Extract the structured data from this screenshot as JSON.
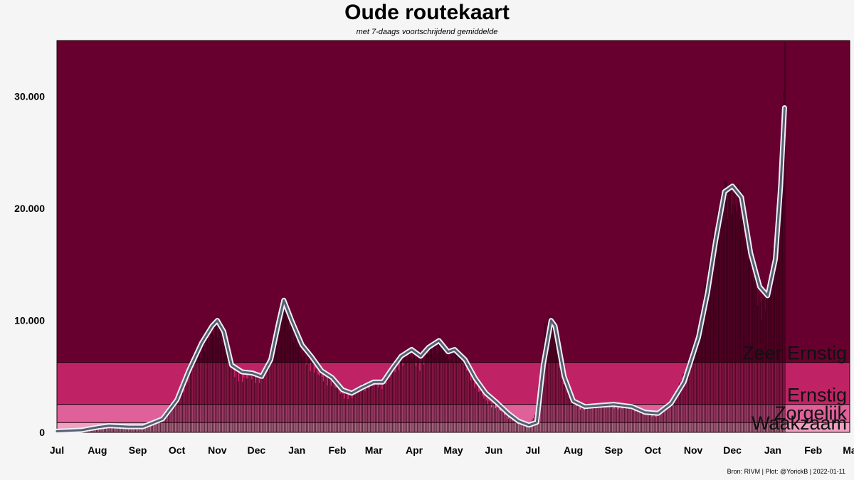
{
  "chart_data": {
    "type": "bar",
    "title": "Oude routekaart",
    "subtitle": "met 7-daags voortschrijdend gemiddelde",
    "xlabel": "",
    "ylabel": "",
    "ylim": [
      0,
      35000
    ],
    "y_ticks": [
      {
        "value": 0,
        "label": "0"
      },
      {
        "value": 10000,
        "label": "10.000"
      },
      {
        "value": 20000,
        "label": "20.000"
      },
      {
        "value": 30000,
        "label": "30.000"
      }
    ],
    "x_ticks": [
      {
        "date": "2020-07-01",
        "label": "Jul"
      },
      {
        "date": "2020-08-01",
        "label": "Aug"
      },
      {
        "date": "2020-09-01",
        "label": "Sep"
      },
      {
        "date": "2020-10-01",
        "label": "Oct"
      },
      {
        "date": "2020-11-01",
        "label": "Nov"
      },
      {
        "date": "2020-12-01",
        "label": "Dec"
      },
      {
        "date": "2021-01-01",
        "label": "Jan"
      },
      {
        "date": "2021-02-01",
        "label": "Feb"
      },
      {
        "date": "2021-03-01",
        "label": "Mar"
      },
      {
        "date": "2021-04-01",
        "label": "Apr"
      },
      {
        "date": "2021-05-01",
        "label": "May"
      },
      {
        "date": "2021-06-01",
        "label": "Jun"
      },
      {
        "date": "2021-07-01",
        "label": "Jul"
      },
      {
        "date": "2021-08-01",
        "label": "Aug"
      },
      {
        "date": "2021-09-01",
        "label": "Sep"
      },
      {
        "date": "2021-10-01",
        "label": "Oct"
      },
      {
        "date": "2021-11-01",
        "label": "Nov"
      },
      {
        "date": "2021-12-01",
        "label": "Dec"
      },
      {
        "date": "2022-01-01",
        "label": "Jan"
      },
      {
        "date": "2022-02-01",
        "label": "Feb"
      },
      {
        "date": "2022-03-01",
        "label": "Ma"
      }
    ],
    "x_range": [
      "2020-07-01",
      "2022-03-01"
    ],
    "bands": [
      {
        "name": "Waakzaam",
        "from": 0,
        "to": 875,
        "color": "#f0a0c0"
      },
      {
        "name": "Zorgelijk",
        "from": 875,
        "to": 2500,
        "color": "#e0609a"
      },
      {
        "name": "Ernstig",
        "from": 2500,
        "to": 6250,
        "color": "#c02365"
      },
      {
        "name": "Zeer Ernstig",
        "from": 6250,
        "to": 35000,
        "color": "#67002f"
      }
    ],
    "series": [
      {
        "kind": "daily-bars",
        "color": "#2a0212",
        "points": [
          [
            "2020-07-01",
            60
          ],
          [
            "2020-07-15",
            100
          ],
          [
            "2020-07-25",
            200
          ],
          [
            "2020-08-01",
            450
          ],
          [
            "2020-08-08",
            600
          ],
          [
            "2020-08-15",
            550
          ],
          [
            "2020-08-25",
            450
          ],
          [
            "2020-09-01",
            500
          ],
          [
            "2020-09-10",
            800
          ],
          [
            "2020-09-20",
            1500
          ],
          [
            "2020-10-01",
            2900
          ],
          [
            "2020-10-10",
            5500
          ],
          [
            "2020-10-18",
            7800
          ],
          [
            "2020-10-25",
            9000
          ],
          [
            "2020-10-31",
            10200
          ],
          [
            "2020-11-05",
            9200
          ],
          [
            "2020-11-12",
            6000
          ],
          [
            "2020-11-20",
            5200
          ],
          [
            "2020-11-28",
            5500
          ],
          [
            "2020-12-05",
            5000
          ],
          [
            "2020-12-12",
            7200
          ],
          [
            "2020-12-18",
            10500
          ],
          [
            "2020-12-22",
            12500
          ],
          [
            "2020-12-28",
            10000
          ],
          [
            "2021-01-05",
            7500
          ],
          [
            "2021-01-12",
            6500
          ],
          [
            "2021-01-20",
            5300
          ],
          [
            "2021-01-28",
            4800
          ],
          [
            "2021-02-05",
            3600
          ],
          [
            "2021-02-12",
            3500
          ],
          [
            "2021-02-20",
            4400
          ],
          [
            "2021-03-01",
            4600
          ],
          [
            "2021-03-08",
            4700
          ],
          [
            "2021-03-15",
            5800
          ],
          [
            "2021-03-22",
            7000
          ],
          [
            "2021-03-30",
            7400
          ],
          [
            "2021-04-06",
            6500
          ],
          [
            "2021-04-12",
            7800
          ],
          [
            "2021-04-20",
            8800
          ],
          [
            "2021-04-27",
            7000
          ],
          [
            "2021-05-02",
            7600
          ],
          [
            "2021-05-10",
            6500
          ],
          [
            "2021-05-18",
            4500
          ],
          [
            "2021-05-26",
            3000
          ],
          [
            "2021-06-03",
            2400
          ],
          [
            "2021-06-12",
            1500
          ],
          [
            "2021-06-20",
            800
          ],
          [
            "2021-06-28",
            600
          ],
          [
            "2021-07-05",
            2500
          ],
          [
            "2021-07-10",
            10000
          ],
          [
            "2021-07-15",
            11000
          ],
          [
            "2021-07-22",
            6000
          ],
          [
            "2021-07-30",
            3000
          ],
          [
            "2021-08-08",
            2300
          ],
          [
            "2021-08-20",
            2600
          ],
          [
            "2021-09-01",
            2500
          ],
          [
            "2021-09-15",
            2400
          ],
          [
            "2021-09-25",
            1800
          ],
          [
            "2021-10-05",
            1600
          ],
          [
            "2021-10-15",
            2800
          ],
          [
            "2021-10-25",
            5500
          ],
          [
            "2021-11-05",
            10000
          ],
          [
            "2021-11-15",
            18000
          ],
          [
            "2021-11-25",
            23000
          ],
          [
            "2021-12-01",
            22000
          ],
          [
            "2021-12-08",
            22500
          ],
          [
            "2021-12-15",
            16000
          ],
          [
            "2021-12-22",
            12000
          ],
          [
            "2021-12-28",
            13000
          ],
          [
            "2022-01-03",
            20000
          ],
          [
            "2022-01-07",
            26000
          ],
          [
            "2022-01-10",
            35000
          ]
        ]
      },
      {
        "kind": "7-day-average-line",
        "color": "#556070",
        "outline": "#f0f0f8",
        "points": [
          [
            "2020-07-01",
            100
          ],
          [
            "2020-07-20",
            200
          ],
          [
            "2020-08-01",
            450
          ],
          [
            "2020-08-10",
            600
          ],
          [
            "2020-08-25",
            500
          ],
          [
            "2020-09-05",
            500
          ],
          [
            "2020-09-20",
            1200
          ],
          [
            "2020-10-01",
            2900
          ],
          [
            "2020-10-10",
            5500
          ],
          [
            "2020-10-20",
            8000
          ],
          [
            "2020-10-28",
            9500
          ],
          [
            "2020-11-01",
            10000
          ],
          [
            "2020-11-06",
            9000
          ],
          [
            "2020-11-12",
            6000
          ],
          [
            "2020-11-20",
            5400
          ],
          [
            "2020-11-28",
            5300
          ],
          [
            "2020-12-05",
            5000
          ],
          [
            "2020-12-12",
            6500
          ],
          [
            "2020-12-18",
            9800
          ],
          [
            "2020-12-22",
            11800
          ],
          [
            "2020-12-28",
            10000
          ],
          [
            "2021-01-05",
            7800
          ],
          [
            "2021-01-12",
            6800
          ],
          [
            "2021-01-20",
            5500
          ],
          [
            "2021-01-28",
            4900
          ],
          [
            "2021-02-05",
            3800
          ],
          [
            "2021-02-12",
            3500
          ],
          [
            "2021-02-20",
            4000
          ],
          [
            "2021-03-01",
            4500
          ],
          [
            "2021-03-08",
            4500
          ],
          [
            "2021-03-15",
            5700
          ],
          [
            "2021-03-22",
            6800
          ],
          [
            "2021-03-30",
            7400
          ],
          [
            "2021-04-06",
            6800
          ],
          [
            "2021-04-12",
            7600
          ],
          [
            "2021-04-20",
            8200
          ],
          [
            "2021-04-27",
            7200
          ],
          [
            "2021-05-02",
            7400
          ],
          [
            "2021-05-10",
            6500
          ],
          [
            "2021-05-18",
            4800
          ],
          [
            "2021-05-26",
            3500
          ],
          [
            "2021-06-03",
            2700
          ],
          [
            "2021-06-12",
            1700
          ],
          [
            "2021-06-20",
            1000
          ],
          [
            "2021-06-28",
            650
          ],
          [
            "2021-07-04",
            900
          ],
          [
            "2021-07-09",
            6000
          ],
          [
            "2021-07-15",
            10000
          ],
          [
            "2021-07-18",
            9500
          ],
          [
            "2021-07-25",
            5000
          ],
          [
            "2021-08-01",
            2800
          ],
          [
            "2021-08-10",
            2300
          ],
          [
            "2021-08-20",
            2400
          ],
          [
            "2021-09-01",
            2500
          ],
          [
            "2021-09-15",
            2300
          ],
          [
            "2021-09-25",
            1800
          ],
          [
            "2021-10-05",
            1700
          ],
          [
            "2021-10-15",
            2600
          ],
          [
            "2021-10-25",
            4500
          ],
          [
            "2021-11-05",
            8500
          ],
          [
            "2021-11-12",
            12500
          ],
          [
            "2021-11-18",
            17000
          ],
          [
            "2021-11-25",
            21500
          ],
          [
            "2021-12-01",
            22000
          ],
          [
            "2021-12-08",
            21000
          ],
          [
            "2021-12-15",
            16000
          ],
          [
            "2021-12-22",
            13000
          ],
          [
            "2021-12-28",
            12200
          ],
          [
            "2022-01-03",
            15500
          ],
          [
            "2022-01-07",
            22000
          ],
          [
            "2022-01-10",
            29000
          ]
        ]
      }
    ]
  },
  "footer": "Bron: RIVM | Plot: @YorickB  |  2022-01-11"
}
